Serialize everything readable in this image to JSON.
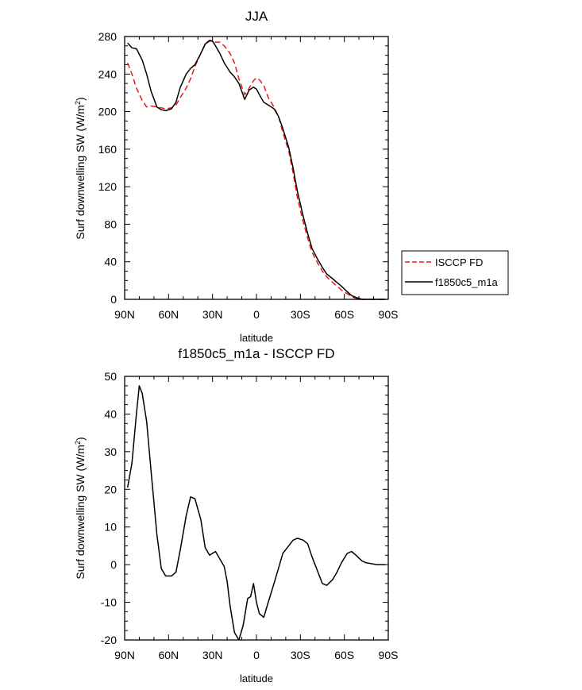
{
  "chart_data": [
    {
      "type": "line",
      "title": "JJA",
      "xlabel": "latitude",
      "ylabel": "Surf downwelling SW (W/m",
      "ylabel_sup": "2",
      "ylabel_close": ")",
      "xlim": [
        90,
        -90
      ],
      "ylim": [
        0,
        280
      ],
      "x_ticks": [
        {
          "value": 90,
          "label": "90N"
        },
        {
          "value": 60,
          "label": "60N"
        },
        {
          "value": 30,
          "label": "30N"
        },
        {
          "value": 0,
          "label": "0"
        },
        {
          "value": -30,
          "label": "30S"
        },
        {
          "value": -60,
          "label": "60S"
        },
        {
          "value": -90,
          "label": "90S"
        }
      ],
      "y_ticks": [
        0,
        40,
        80,
        120,
        160,
        200,
        240,
        280
      ],
      "grid": false,
      "legend": {
        "placement": "right",
        "entries": [
          {
            "label": "ISCCP FD",
            "color": "#e8191c",
            "dash": true
          },
          {
            "label": "f1850c5_m1a",
            "color": "#000000",
            "dash": false
          }
        ]
      },
      "series": [
        {
          "name": "ISCCP FD",
          "color": "#e8191c",
          "dash": true,
          "x": [
            88,
            85,
            82,
            78,
            75,
            72,
            68,
            65,
            62,
            58,
            55,
            52,
            48,
            45,
            42,
            38,
            35,
            32,
            30,
            28,
            25,
            22,
            18,
            15,
            12,
            8,
            5,
            2,
            0,
            -2,
            -5,
            -8,
            -12,
            -15,
            -18,
            -22,
            -25,
            -28,
            -32,
            -35,
            -38,
            -42,
            -45,
            -48,
            -52,
            -55,
            -58,
            -62,
            -65,
            -68,
            -72,
            -75,
            -78,
            -82,
            -85,
            -88
          ],
          "y": [
            252,
            240,
            225,
            212,
            205,
            206,
            205,
            204,
            203,
            204,
            207,
            215,
            225,
            235,
            248,
            262,
            272,
            275,
            275,
            274,
            274,
            270,
            262,
            252,
            235,
            218,
            225,
            233,
            236,
            234,
            228,
            215,
            205,
            195,
            178,
            158,
            135,
            108,
            82,
            65,
            50,
            38,
            30,
            24,
            18,
            14,
            10,
            6,
            3,
            1,
            0,
            0,
            0,
            0,
            0,
            0
          ]
        },
        {
          "name": "f1850c5_m1a",
          "color": "#000000",
          "dash": false,
          "x": [
            88,
            85,
            82,
            78,
            75,
            72,
            68,
            65,
            62,
            58,
            55,
            52,
            48,
            45,
            42,
            38,
            35,
            32,
            30,
            28,
            25,
            22,
            18,
            15,
            12,
            8,
            5,
            2,
            0,
            -2,
            -5,
            -8,
            -12,
            -15,
            -18,
            -22,
            -25,
            -28,
            -32,
            -35,
            -38,
            -42,
            -45,
            -48,
            -52,
            -55,
            -58,
            -62,
            -65,
            -68,
            -72,
            -75,
            -78,
            -82,
            -85,
            -88
          ],
          "y": [
            273,
            268,
            267,
            255,
            240,
            222,
            205,
            202,
            201,
            203,
            210,
            226,
            240,
            246,
            250,
            262,
            272,
            276,
            275,
            270,
            262,
            252,
            242,
            237,
            230,
            213,
            223,
            226,
            224,
            218,
            210,
            207,
            203,
            195,
            182,
            162,
            140,
            115,
            88,
            70,
            54,
            42,
            34,
            27,
            22,
            18,
            14,
            8,
            4,
            2,
            0,
            0,
            0,
            0,
            0,
            0
          ]
        }
      ]
    },
    {
      "type": "line",
      "title": "f1850c5_m1a - ISCCP FD",
      "xlabel": "latitude",
      "ylabel": "Surf downwelling SW (W/m",
      "ylabel_sup": "2",
      "ylabel_close": ")",
      "xlim": [
        90,
        -90
      ],
      "ylim": [
        -20,
        50
      ],
      "x_ticks": [
        {
          "value": 90,
          "label": "90N"
        },
        {
          "value": 60,
          "label": "60N"
        },
        {
          "value": 30,
          "label": "30N"
        },
        {
          "value": 0,
          "label": "0"
        },
        {
          "value": -30,
          "label": "30S"
        },
        {
          "value": -60,
          "label": "60S"
        },
        {
          "value": -90,
          "label": "90S"
        }
      ],
      "y_ticks": [
        -20,
        -10,
        0,
        10,
        20,
        30,
        40,
        50
      ],
      "grid": false,
      "series": [
        {
          "color": "#000000",
          "dash": false,
          "x": [
            88,
            85,
            82,
            80,
            78,
            75,
            72,
            68,
            65,
            62,
            58,
            55,
            52,
            48,
            45,
            42,
            38,
            35,
            32,
            28,
            25,
            22,
            20,
            18,
            15,
            12,
            9,
            6,
            4,
            2,
            0,
            -2,
            -5,
            -8,
            -12,
            -15,
            -18,
            -22,
            -25,
            -28,
            -32,
            -35,
            -38,
            -42,
            -45,
            -48,
            -52,
            -55,
            -58,
            -62,
            -65,
            -68,
            -72,
            -75,
            -78,
            -82,
            -85,
            -88
          ],
          "y": [
            20.5,
            27,
            40,
            47.5,
            45.5,
            38,
            25,
            8,
            -1,
            -3,
            -3,
            -2,
            4,
            13,
            18,
            17.5,
            12,
            4.5,
            2.5,
            3.5,
            1.5,
            -0.5,
            -4.5,
            -11,
            -18,
            -20,
            -16,
            -9,
            -8.5,
            -5,
            -10,
            -13,
            -14,
            -10,
            -5,
            -1,
            3,
            5,
            6.5,
            7,
            6.5,
            5.5,
            2,
            -2,
            -5,
            -5.5,
            -4,
            -2,
            0.5,
            3,
            3.5,
            2.5,
            1,
            0.5,
            0.3,
            0,
            0,
            0
          ]
        }
      ]
    }
  ]
}
